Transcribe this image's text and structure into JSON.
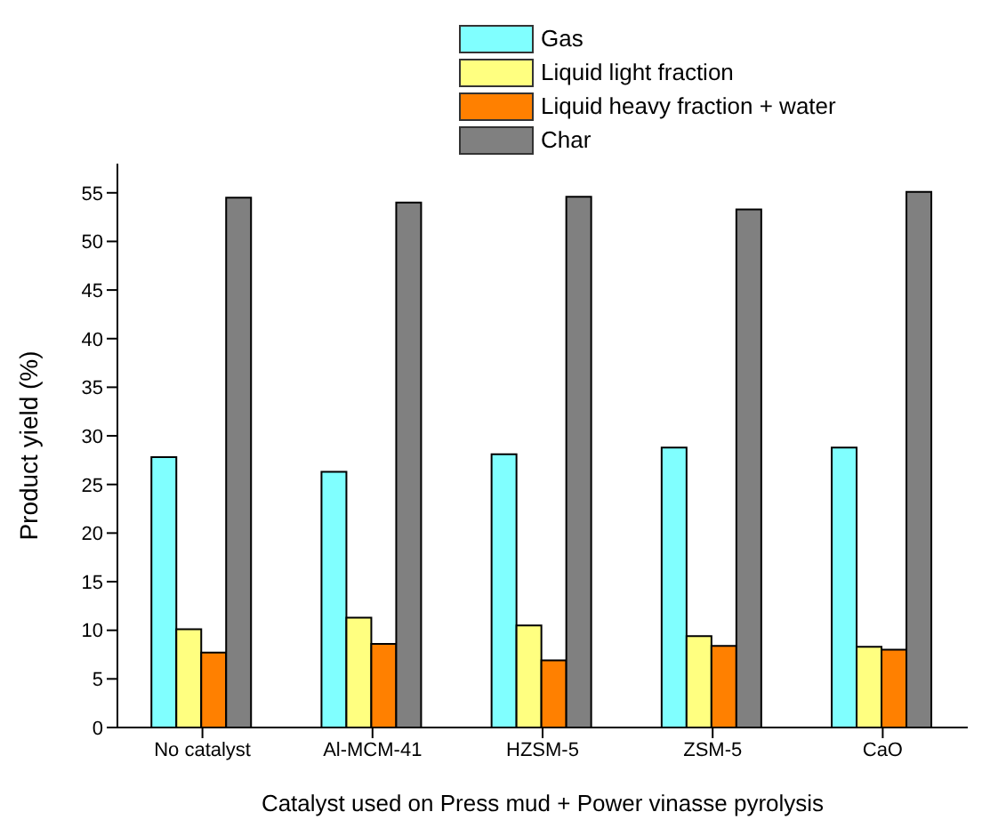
{
  "chart_data": {
    "type": "bar",
    "xlabel": "Catalyst used on Press mud + Power vinasse pyrolysis",
    "ylabel": "Product yield (%)",
    "categories": [
      "No catalyst",
      "Al-MCM-41",
      "HZSM-5",
      "ZSM-5",
      "CaO"
    ],
    "series": [
      {
        "name": "Gas",
        "color": "#80ffff",
        "values": [
          27.8,
          26.3,
          28.1,
          28.8,
          28.8
        ]
      },
      {
        "name": "Liquid light fraction",
        "color": "#ffff80",
        "values": [
          10.1,
          11.3,
          10.5,
          9.4,
          8.3
        ]
      },
      {
        "name": "Liquid heavy fraction + water",
        "color": "#ff8000",
        "values": [
          7.7,
          8.6,
          6.9,
          8.4,
          8.0
        ]
      },
      {
        "name": "Char",
        "color": "#808080",
        "values": [
          54.5,
          54.0,
          54.6,
          53.3,
          55.1
        ]
      }
    ],
    "ylim": [
      0,
      58
    ],
    "yticks": [
      0,
      5,
      10,
      15,
      20,
      25,
      30,
      35,
      40,
      45,
      50,
      55
    ],
    "legend": "top"
  }
}
